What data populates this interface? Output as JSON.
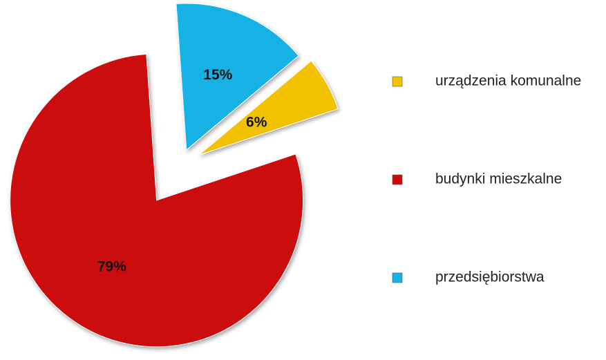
{
  "chart_data": {
    "type": "pie",
    "categories": [
      "urządzenia komunalne",
      "budynki mieszkalne",
      "przedsiębiorstwa"
    ],
    "values": [
      6,
      79,
      15
    ],
    "value_labels": [
      "6%",
      "79%",
      "15%"
    ],
    "colors": [
      "#f2c200",
      "#cc0a0a",
      "#18b2e6"
    ],
    "legend": "right"
  }
}
